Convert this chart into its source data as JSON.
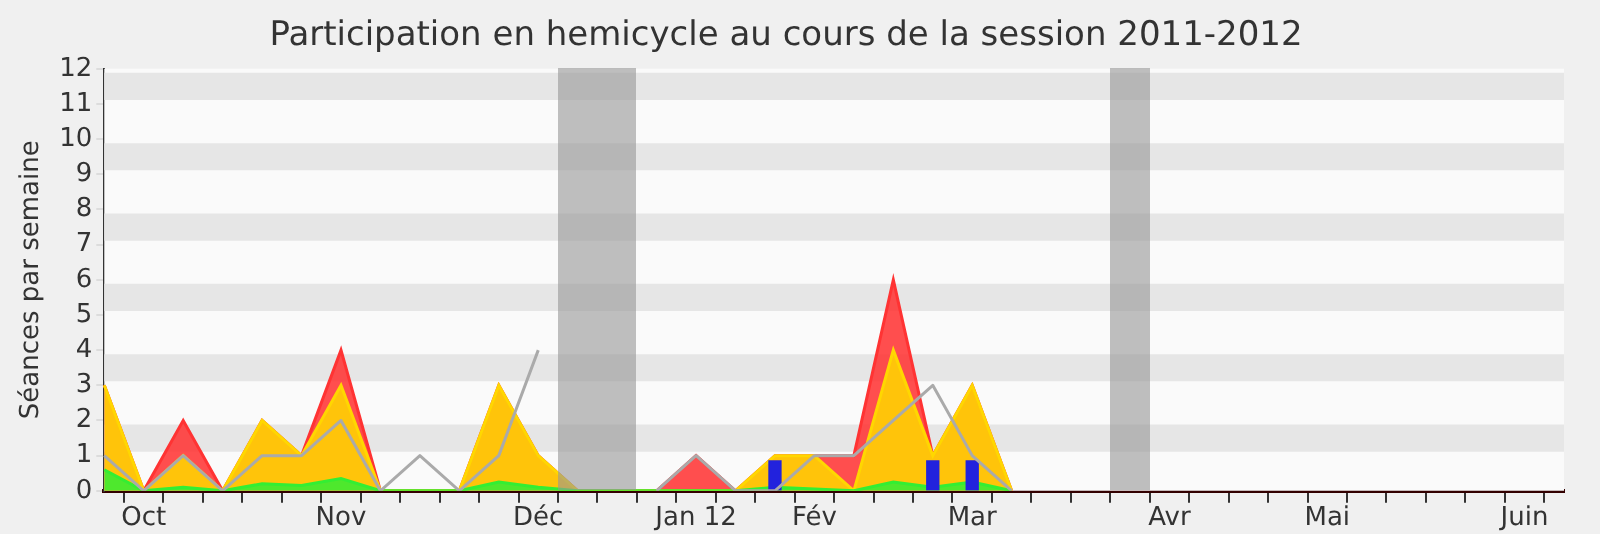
{
  "chart_data": {
    "type": "area",
    "title": "Participation en hemicycle au cours de la session 2011-2012",
    "ylabel": "Séances par semaine",
    "categories": [
      null,
      "Oct",
      null,
      null,
      null,
      null,
      "Nov",
      null,
      null,
      null,
      null,
      "Déc",
      null,
      null,
      null,
      "Jan 12",
      null,
      null,
      "Fév",
      null,
      null,
      null,
      "Mar",
      null,
      null,
      null,
      null,
      "Avr",
      null,
      null,
      null,
      "Mai",
      null,
      null,
      null,
      null,
      "Juin",
      null
    ],
    "series": [
      {
        "color": "#ff3333",
        "values": [
          3,
          0,
          2,
          0,
          2,
          1,
          4,
          0,
          0,
          0,
          3,
          1,
          0,
          0,
          0,
          1,
          0,
          1,
          1,
          1,
          6,
          1,
          3,
          0,
          null,
          null,
          null,
          null,
          null,
          null,
          null,
          null,
          null,
          null,
          null,
          null,
          null,
          null
        ]
      },
      {
        "color": "#ffd700",
        "values": [
          3,
          0,
          1,
          0,
          2,
          1,
          3,
          0,
          0,
          0,
          3,
          1,
          0,
          0,
          0,
          0,
          0,
          1,
          1,
          0,
          4,
          1,
          3,
          0,
          null,
          null,
          null,
          null,
          null,
          null,
          null,
          null,
          null,
          null,
          null,
          null,
          null,
          null
        ]
      },
      {
        "color": "#33ee33",
        "values": [
          0.6,
          0,
          0.1,
          0,
          0.2,
          0.15,
          0.35,
          0,
          0,
          0,
          0.25,
          0.1,
          0,
          0,
          0,
          0,
          0,
          0.1,
          0.05,
          0,
          0.25,
          0.1,
          0.25,
          0,
          null,
          null,
          null,
          null,
          null,
          null,
          null,
          null,
          null,
          null,
          null,
          null,
          null,
          null
        ]
      },
      {
        "type": "line",
        "color": "#aaaaaa",
        "values": [
          1,
          0,
          1,
          0,
          1,
          1,
          2,
          0,
          1,
          0,
          1,
          4,
          null,
          null,
          0,
          1,
          0,
          0,
          1,
          1,
          2,
          3,
          1,
          0,
          null,
          null,
          null,
          null,
          null,
          null,
          null,
          null,
          null,
          null,
          null,
          null,
          null,
          null
        ]
      },
      {
        "type": "bar",
        "color": "#2222dd",
        "values": [
          null,
          null,
          null,
          null,
          null,
          null,
          null,
          null,
          null,
          null,
          null,
          null,
          null,
          null,
          null,
          null,
          null,
          0.85,
          null,
          null,
          null,
          0.85,
          0.85,
          null,
          null,
          null,
          null,
          null,
          null,
          null,
          null,
          null,
          null,
          null,
          null,
          null,
          null,
          null
        ]
      }
    ],
    "ylim": [
      0,
      12
    ],
    "yticks": [
      0,
      1,
      2,
      3,
      4,
      5,
      6,
      7,
      8,
      9,
      10,
      11,
      12
    ],
    "marker": "none"
  }
}
